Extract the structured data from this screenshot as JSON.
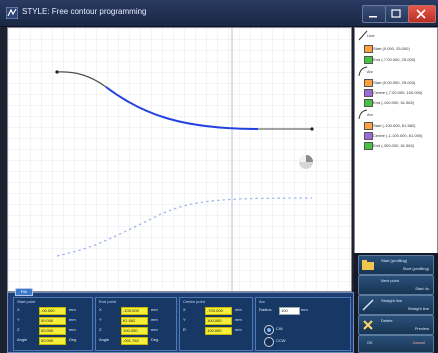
{
  "window": {
    "title": "STYLE: Free contour programming",
    "minimize": "–",
    "maximize": "□",
    "close": "✕"
  },
  "tree": {
    "items": [
      {
        "label": "Line",
        "level": 0
      },
      {
        "label": "Start (0.000, 25.000)",
        "level": 1,
        "color": "#ff9f40"
      },
      {
        "label": "End (-7.00.000, 25.000)",
        "level": 1,
        "color": "#43c443"
      },
      {
        "label": "Arc",
        "level": 0
      },
      {
        "label": "Start (0.00.000, 25.000)",
        "level": 1,
        "color": "#ff9f40"
      },
      {
        "label": "Centre (-7.00.000, 100.000)",
        "level": 1,
        "color": "#9b6bd8"
      },
      {
        "label": "End (-100.000, 61.562)",
        "level": 1,
        "color": "#43c443"
      },
      {
        "label": "Arc",
        "level": 0
      },
      {
        "label": "Start (-100.000, 61.562)",
        "level": 1,
        "color": "#ff9f40"
      },
      {
        "label": "Centre (-1.100.000, 61.000)",
        "level": 1,
        "color": "#9b6bd8"
      },
      {
        "label": "End (-300.000, 61.562)",
        "level": 1,
        "color": "#43c443"
      }
    ]
  },
  "actions": [
    {
      "line1": "Start (profiling)",
      "line2": "Start (profiling)"
    },
    {
      "line1": "Next point",
      "line2": "Start 4x"
    },
    {
      "line1": "Straight line",
      "line2": "Straight line"
    },
    {
      "line1": "Delete",
      "line2": "Preview"
    },
    {
      "line1": "OK",
      "line2": "Cancel"
    }
  ],
  "bottom": {
    "tab": "File",
    "groups": [
      {
        "title": "Start point",
        "rows": [
          {
            "label": "X",
            "value": "-00.000",
            "unit": "mm"
          },
          {
            "label": "Y",
            "value": "00.000",
            "unit": "mm"
          },
          {
            "label": "Z",
            "value": "00.000",
            "unit": "mm"
          },
          {
            "label": "Angle",
            "value": "00.000",
            "unit": "Deg"
          }
        ]
      },
      {
        "title": "End point",
        "rows": [
          {
            "label": "X",
            "value": "-100.000",
            "unit": "mm"
          },
          {
            "label": "Y",
            "value": "61.562",
            "unit": "mm"
          },
          {
            "label": "Z",
            "value": "100.000",
            "unit": "mm"
          },
          {
            "label": "Angle",
            "value": "-001.762",
            "unit": "Deg"
          }
        ]
      },
      {
        "title": "Centre point",
        "rows": [
          {
            "label": "X",
            "value": "-700.000",
            "unit": "mm"
          },
          {
            "label": "Y",
            "value": "100.000",
            "unit": "mm"
          },
          {
            "label": "R",
            "value": "100.000",
            "unit": "mm"
          }
        ]
      }
    ],
    "options": {
      "title": "Arc",
      "radius_label": "Radius",
      "radius_value": "100",
      "radius_unit": "mm",
      "cw": "CW",
      "ccw": "CCW",
      "selected": "CW"
    }
  },
  "canvas": {
    "contour": {
      "line_color": "#4b4b4b",
      "arc_color": "#1f3ee0",
      "mirror_color": "#9eb0ea"
    }
  }
}
